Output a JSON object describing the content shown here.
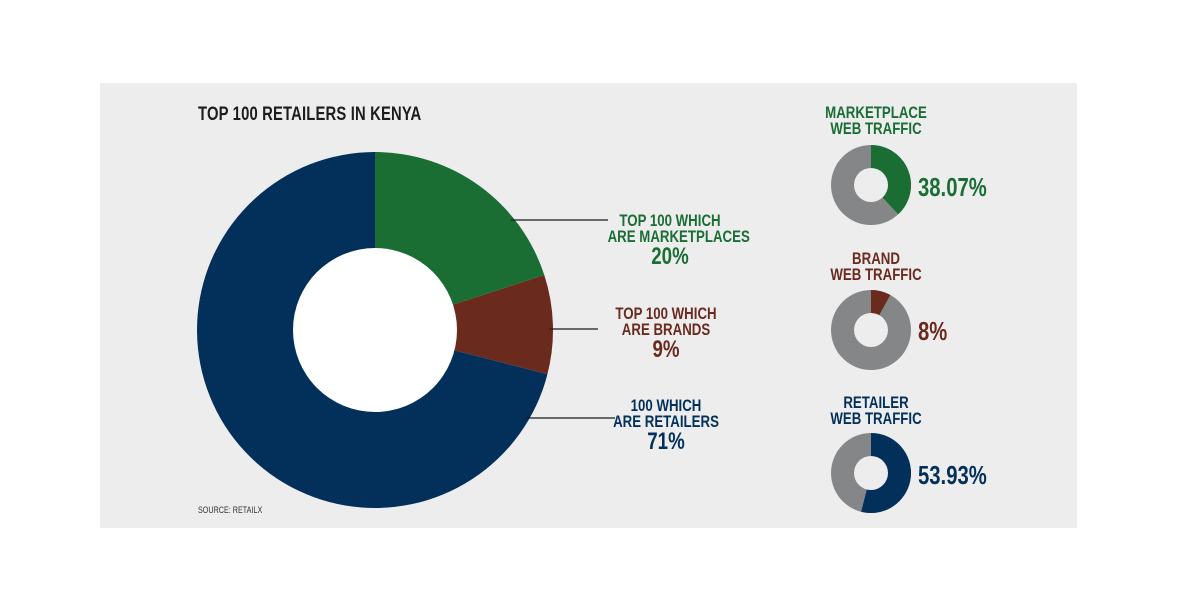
{
  "colors": {
    "marketplace": "#1a6e34",
    "brand": "#6b2a1e",
    "retailer": "#03305a",
    "grey": "#858688",
    "panel": "#ededee"
  },
  "chart_data": [
    {
      "type": "pie",
      "title": "TOP 100 RETAILERS IN KENYA",
      "source": "SOURCE: RETAILX",
      "slices": [
        {
          "key": "marketplace",
          "label_lines": [
            "TOP 100 WHICH",
            "ARE MARKETPLACES"
          ],
          "value": 20,
          "value_label": "20%"
        },
        {
          "key": "brand",
          "label_lines": [
            "TOP 100 WHICH",
            "ARE BRANDS"
          ],
          "value": 9,
          "value_label": "9%"
        },
        {
          "key": "retailer",
          "label_lines": [
            "100 WHICH",
            "ARE RETAILERS"
          ],
          "value": 71,
          "value_label": "71%"
        }
      ]
    },
    {
      "type": "pie",
      "title_lines": [
        "MARKETPLACE",
        "WEB TRAFFIC"
      ],
      "key": "marketplace",
      "value": 38.07,
      "value_label": "38.07%"
    },
    {
      "type": "pie",
      "title_lines": [
        "BRAND",
        "WEB TRAFFIC"
      ],
      "key": "brand",
      "value": 8,
      "value_label": "8%"
    },
    {
      "type": "pie",
      "title_lines": [
        "RETAILER",
        "WEB TRAFFIC"
      ],
      "key": "retailer",
      "value": 53.93,
      "value_label": "53.93%"
    }
  ]
}
